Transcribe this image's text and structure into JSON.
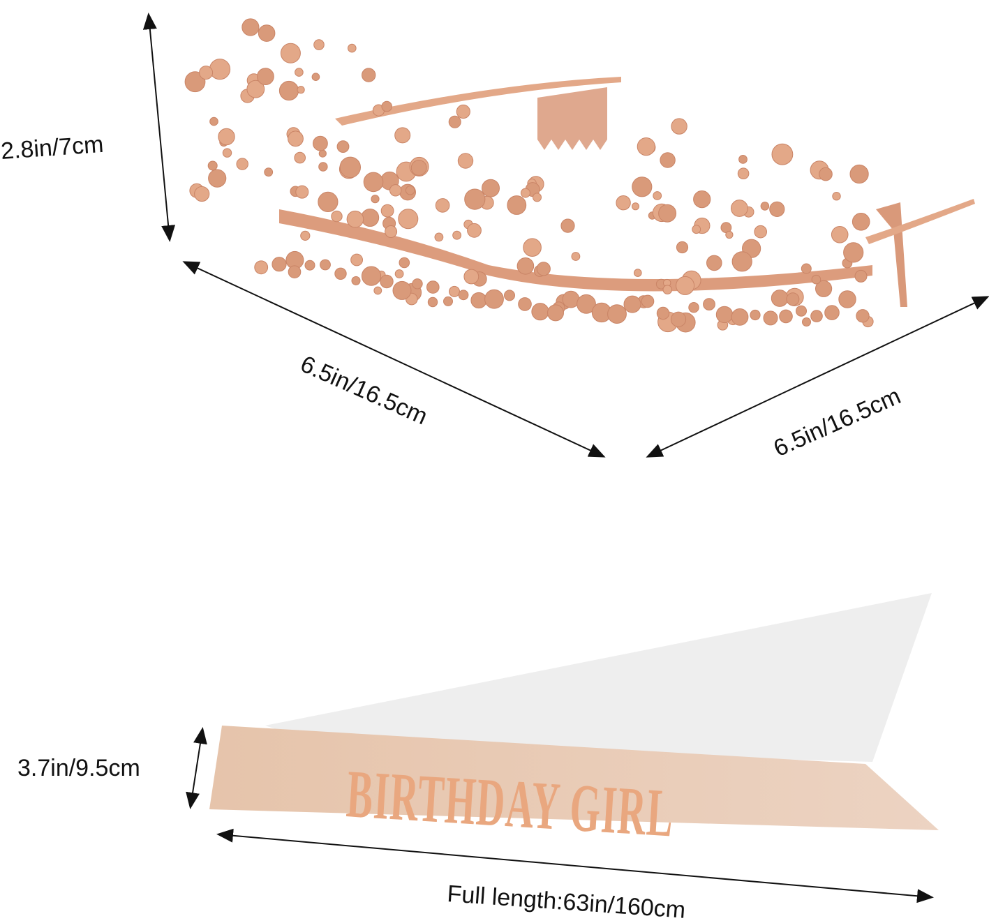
{
  "dimensions": {
    "tiara_height": "2.8in/7cm",
    "tiara_length_left": "6.5in/16.5cm",
    "tiara_length_right": "6.5in/16.5cm",
    "sash_width": "3.7in/9.5cm",
    "sash_full_length": "Full length:63in/160cm"
  },
  "sash": {
    "text": "BIRTHDAY GIRL"
  },
  "colors": {
    "rose_gold": "#e3a888",
    "gem": "#d99a7a",
    "sash": "#e8c9b2",
    "sash_back": "#eeeeee",
    "arrow": "#111111"
  }
}
